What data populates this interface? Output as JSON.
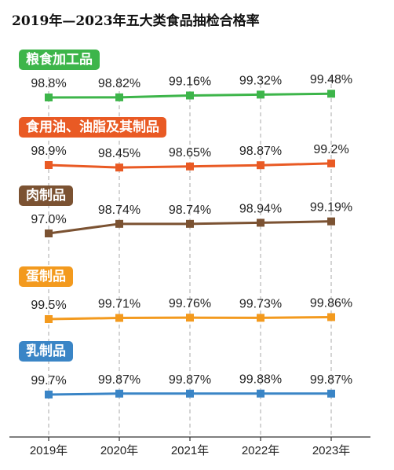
{
  "chart_data": {
    "type": "line",
    "title": "2019年—2023年五大类食品抽检合格率",
    "categories": [
      "2019年",
      "2020年",
      "2021年",
      "2022年",
      "2023年"
    ],
    "series": [
      {
        "name": "粮食加工品",
        "color": "#3db54a",
        "values": [
          98.8,
          98.82,
          99.16,
          99.32,
          99.48
        ],
        "labels": [
          "98.8%",
          "98.82%",
          "99.16%",
          "99.32%",
          "99.48%"
        ]
      },
      {
        "name": "食用油、油脂及其制品",
        "color": "#e95a24",
        "values": [
          98.9,
          98.45,
          98.65,
          98.87,
          99.2
        ],
        "labels": [
          "98.9%",
          "98.45%",
          "98.65%",
          "98.87%",
          "99.2%"
        ]
      },
      {
        "name": "肉制品",
        "color": "#7b5232",
        "values": [
          97.0,
          98.74,
          98.74,
          98.94,
          99.19
        ],
        "labels": [
          "97.0%",
          "98.74%",
          "98.74%",
          "98.94%",
          "99.19%"
        ]
      },
      {
        "name": "蛋制品",
        "color": "#f39a1e",
        "values": [
          99.5,
          99.71,
          99.76,
          99.73,
          99.86
        ],
        "labels": [
          "99.5%",
          "99.71%",
          "99.76%",
          "99.73%",
          "99.86%"
        ]
      },
      {
        "name": "乳制品",
        "color": "#3a85c6",
        "values": [
          99.7,
          99.87,
          99.87,
          99.88,
          99.87
        ],
        "labels": [
          "99.7%",
          "99.87%",
          "99.87%",
          "99.88%",
          "99.87%"
        ]
      }
    ],
    "grid": "vertical dashed",
    "legend": "pill label above each series"
  }
}
